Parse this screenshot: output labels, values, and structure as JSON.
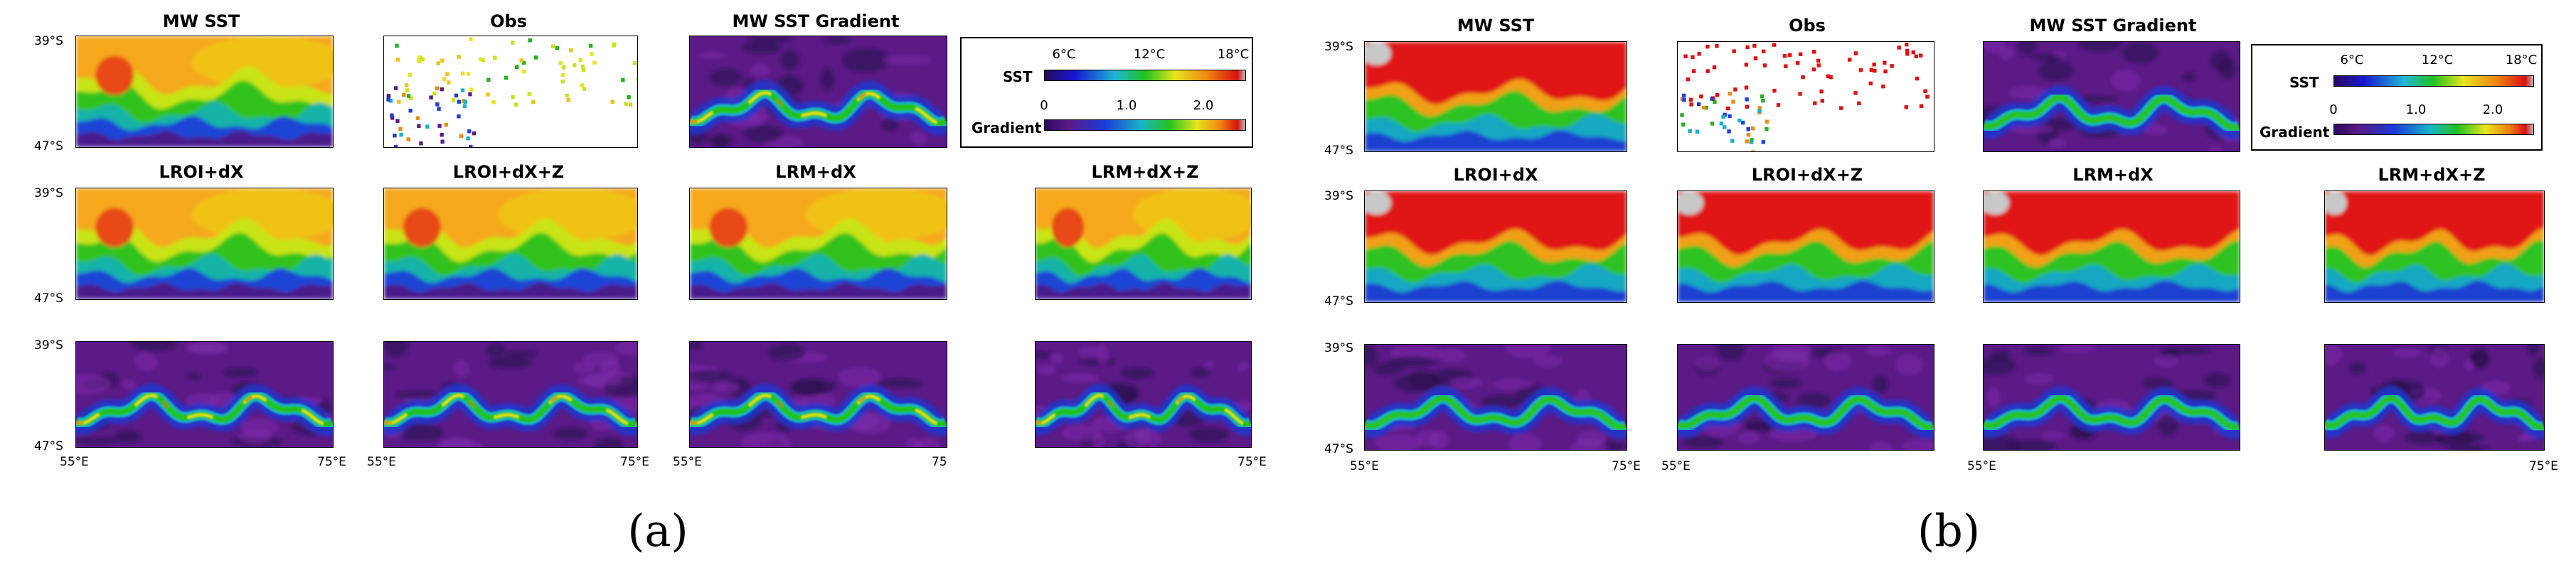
{
  "panel_a": {
    "sublabel": "(a)",
    "titles": {
      "mw_sst": "MW SST",
      "obs": "Obs",
      "mw_grad": "MW SST Gradient",
      "lroi_dx": "LROI+dX",
      "lroi_dx_z": "LROI+dX+Z",
      "lrm_dx": "LRM+dX",
      "lrm_dx_z": "LRM+dX+Z"
    },
    "lat_ticks": [
      "39°S",
      "47°S"
    ],
    "lon_ticks": {
      "c1_left": "55°E",
      "c1_right": "75°E",
      "c2_left": "55°E",
      "c2_right": "75°E",
      "c3_left": "55°E",
      "c3_right": "75",
      "c4_right": "75°E"
    },
    "legend": {
      "sst_label": "SST",
      "sst_ticks": [
        "6°C",
        "12°C",
        "18°C"
      ],
      "grad_label": "Gradient",
      "grad_ticks": [
        "0",
        "1.0",
        "2.0"
      ]
    }
  },
  "panel_b": {
    "sublabel": "(b)",
    "titles": {
      "mw_sst": "MW SST",
      "obs": "Obs",
      "mw_grad": "MW SST Gradient",
      "lroi_dx": "LROI+dX",
      "lroi_dx_z": "LROI+dX+Z",
      "lrm_dx": "LRM+dX",
      "lrm_dx_z": "LRM+dX+Z"
    },
    "lat_ticks": [
      "39°S",
      "47°S"
    ],
    "lon_ticks": {
      "c1_left": "55°E",
      "c1_right": "75°E",
      "c2_left": "55°E",
      "c3_left": "55°E",
      "c4_right": "75°E"
    },
    "legend": {
      "sst_label": "SST",
      "sst_ticks": [
        "6°C",
        "12°C",
        "18°C"
      ],
      "grad_label": "Gradient",
      "grad_ticks": [
        "0",
        "1.0",
        "2.0"
      ]
    }
  },
  "colors": {
    "purple": "#5b1a86",
    "blue": "#1f3fd6",
    "cyan": "#19b3c9",
    "green": "#22b21b",
    "yellow": "#e9e51c",
    "orange": "#f08a12",
    "red": "#e01212",
    "white": "#ffffff"
  }
}
